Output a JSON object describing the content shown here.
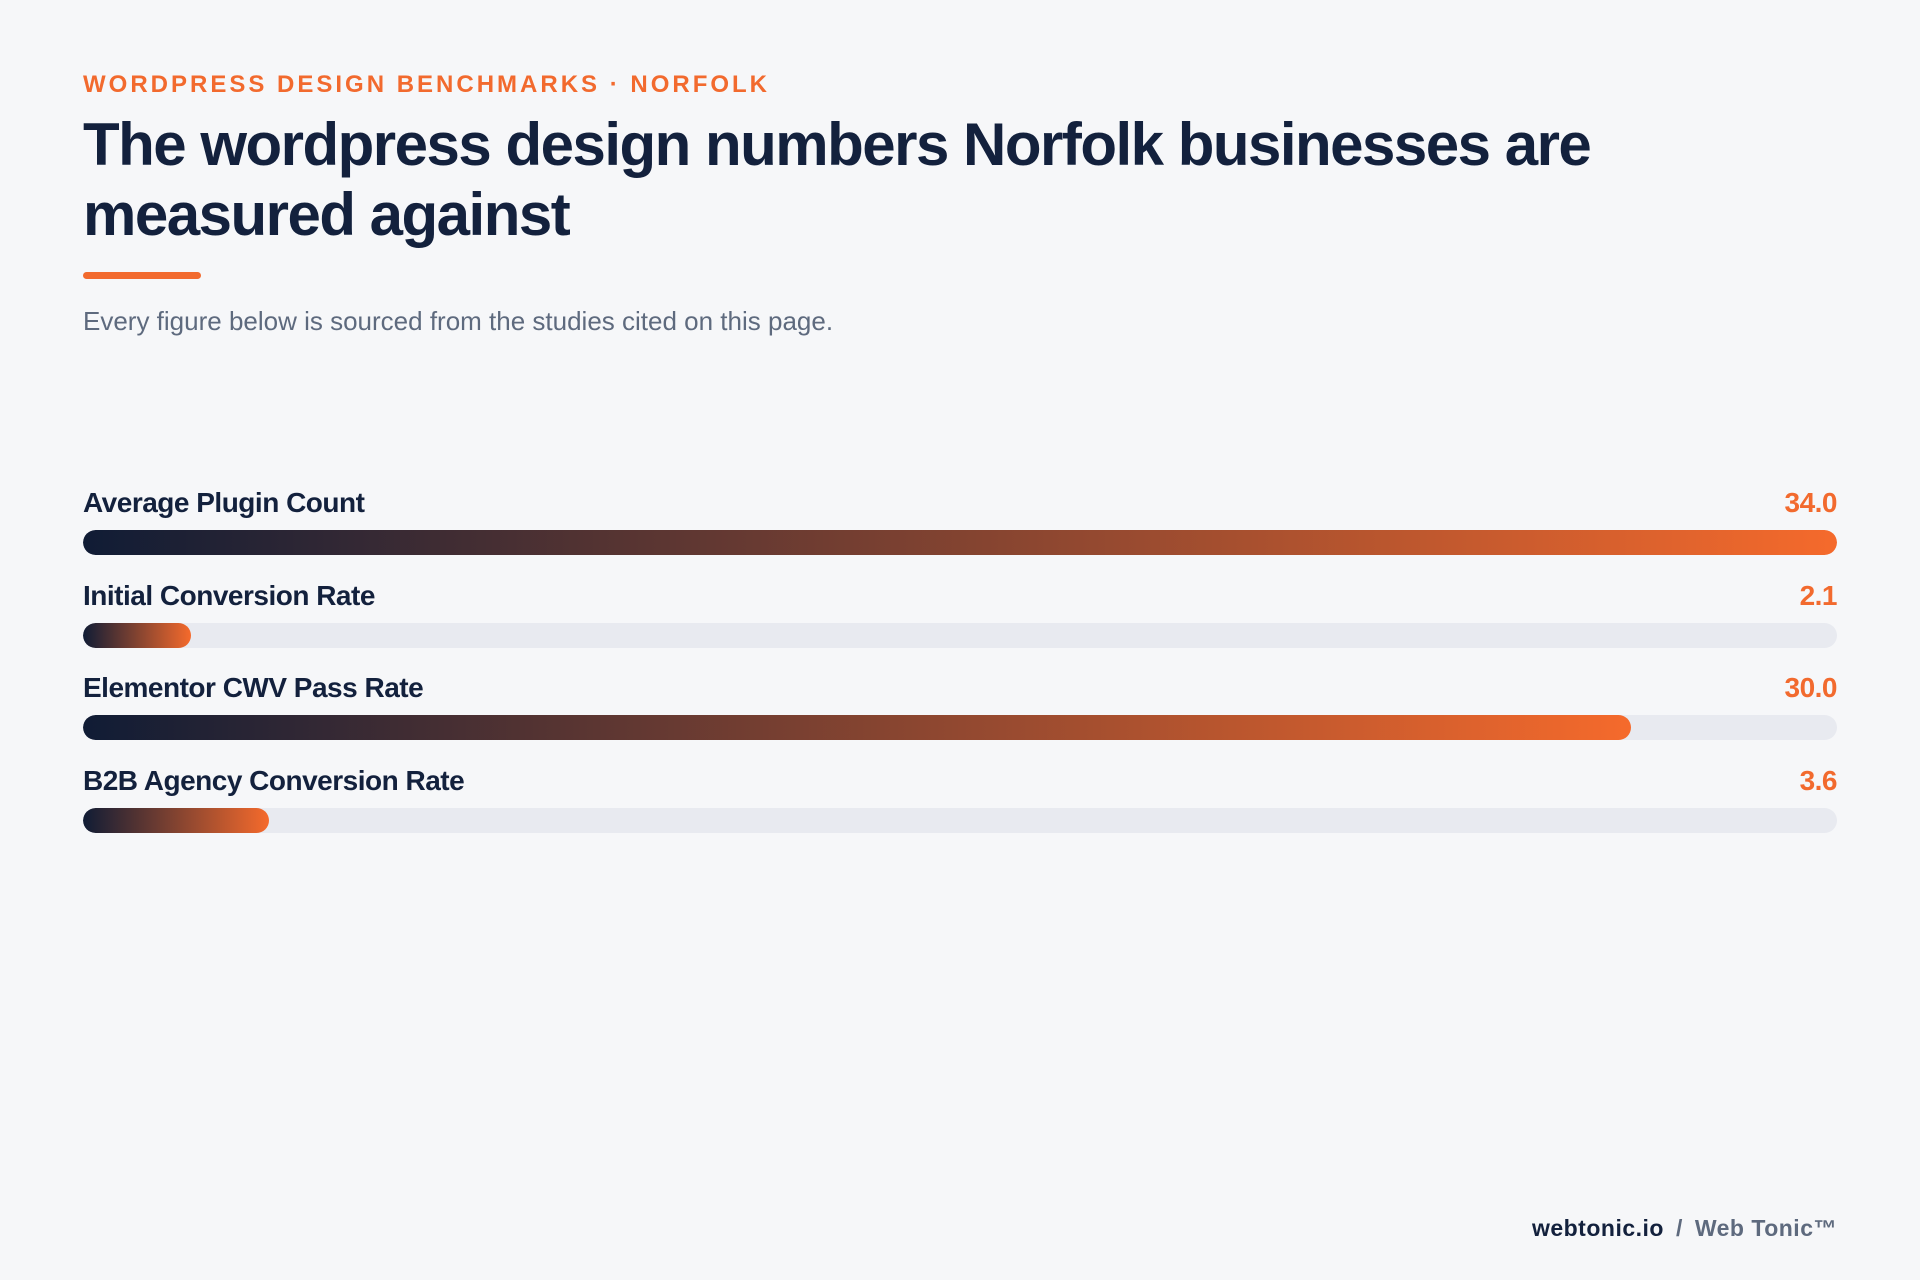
{
  "header": {
    "eyebrow": "WORDPRESS DESIGN BENCHMARKS · NORFOLK",
    "title": "The wordpress design numbers Norfolk businesses are measured against",
    "subtitle": "Every figure below is sourced from the studies cited on this page."
  },
  "chart_data": {
    "type": "bar",
    "orientation": "horizontal",
    "categories": [
      "Average Plugin Count",
      "Initial Conversion Rate",
      "Elementor CWV Pass Rate",
      "B2B Agency Conversion Rate"
    ],
    "values": [
      34.0,
      2.1,
      30.0,
      3.6
    ],
    "value_labels": [
      "34.0",
      "2.1",
      "30.0",
      "3.6"
    ],
    "xlim": [
      0,
      34.0
    ],
    "grid": false,
    "colors": {
      "bar_start": "#101c35",
      "bar_end": "#f56a2c",
      "track": "#e8eaf0",
      "value_text": "#f26a2e"
    }
  },
  "footer": {
    "site": "webtonic.io",
    "separator": "/",
    "brand": "Web Tonic™"
  }
}
